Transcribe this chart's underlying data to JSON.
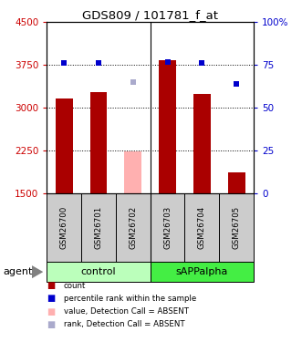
{
  "title": "GDS809 / 101781_f_at",
  "samples": [
    "GSM26700",
    "GSM26701",
    "GSM26702",
    "GSM26703",
    "GSM26704",
    "GSM26705"
  ],
  "bar_values": [
    3170,
    3280,
    null,
    3840,
    3250,
    1870
  ],
  "bar_absent_values": [
    null,
    null,
    2240,
    null,
    null,
    null
  ],
  "bar_colors_present": "#aa0000",
  "bar_colors_absent": "#ffb0b0",
  "rank_values": [
    76,
    76,
    null,
    77,
    76,
    64
  ],
  "rank_absent_values": [
    null,
    null,
    65,
    null,
    null,
    null
  ],
  "rank_color_present": "#0000cc",
  "rank_color_absent": "#aaaacc",
  "ylim_left": [
    1500,
    4500
  ],
  "ylim_right": [
    0,
    100
  ],
  "yticks_left": [
    1500,
    2250,
    3000,
    3750,
    4500
  ],
  "yticks_right": [
    0,
    25,
    50,
    75,
    100
  ],
  "ytick_labels_left": [
    "1500",
    "2250",
    "3000",
    "3750",
    "4500"
  ],
  "ytick_labels_right": [
    "0",
    "25",
    "50",
    "75",
    "100%"
  ],
  "groups": [
    {
      "label": "control",
      "indices": [
        0,
        1,
        2
      ],
      "color": "#bbffbb"
    },
    {
      "label": "sAPPalpha",
      "indices": [
        3,
        4,
        5
      ],
      "color": "#44ee44"
    }
  ],
  "agent_label": "agent",
  "bar_width": 0.5,
  "bg_plot": "#ffffff",
  "bg_sample_box": "#cccccc",
  "left_tick_color": "#cc0000",
  "right_tick_color": "#0000cc",
  "legend_items": [
    {
      "color": "#aa0000",
      "label": "count"
    },
    {
      "color": "#0000cc",
      "label": "percentile rank within the sample"
    },
    {
      "color": "#ffb0b0",
      "label": "value, Detection Call = ABSENT"
    },
    {
      "color": "#aaaacc",
      "label": "rank, Detection Call = ABSENT"
    }
  ]
}
